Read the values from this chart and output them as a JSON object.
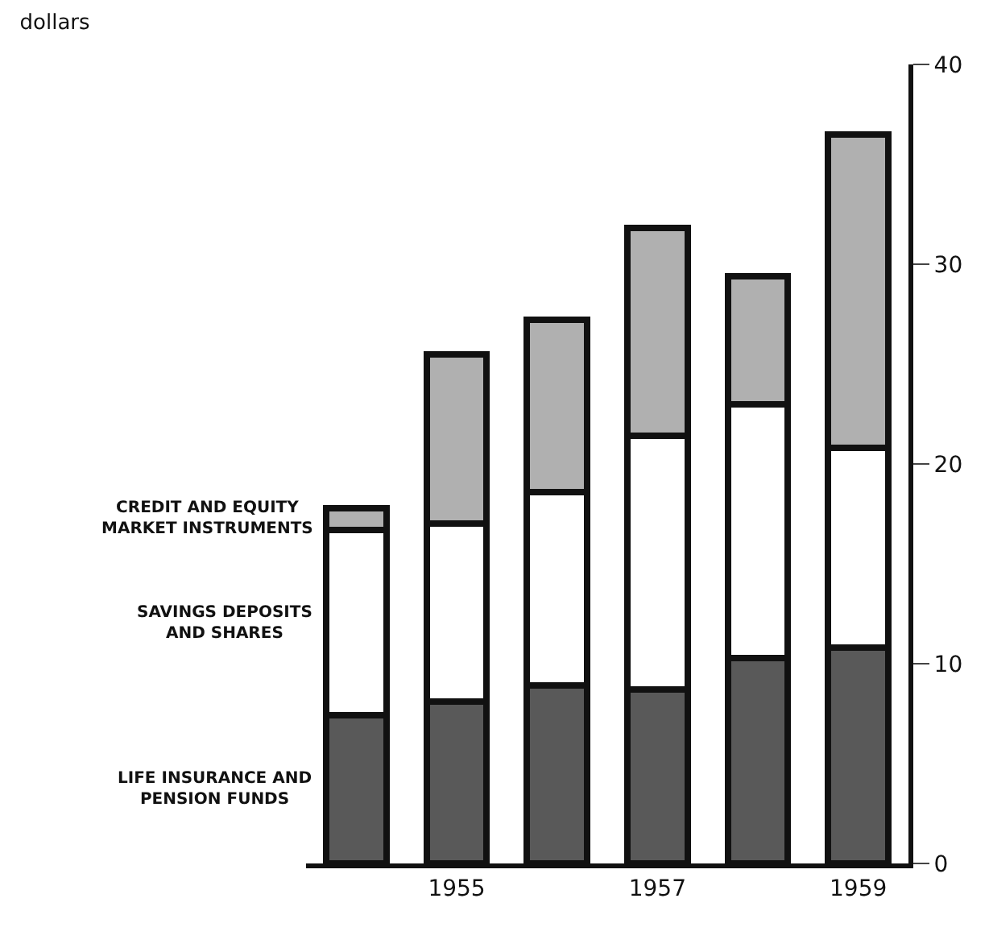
{
  "chart_data": {
    "type": "bar",
    "stacked": true,
    "title": "dollars",
    "categories": [
      null,
      "1955",
      null,
      "1957",
      null,
      "1959"
    ],
    "series": [
      {
        "name": "LIFE INSURANCE AND PENSION FUNDS",
        "color": "#595959",
        "values": [
          7.4,
          8.1,
          8.9,
          8.7,
          10.3,
          10.8
        ]
      },
      {
        "name": "SAVINGS DEPOSITS AND SHARES",
        "color": "#ffffff",
        "values": [
          9.3,
          8.9,
          9.7,
          12.7,
          12.7,
          10.0
        ]
      },
      {
        "name": "CREDIT AND EQUITY MARKET INSTRUMENTS",
        "color": "#b0b0b0",
        "values": [
          1.1,
          8.5,
          8.6,
          10.4,
          6.4,
          15.7
        ]
      }
    ],
    "ylim": [
      0,
      40
    ],
    "yticks": [
      0,
      10,
      20,
      30,
      40
    ],
    "legend": false
  }
}
